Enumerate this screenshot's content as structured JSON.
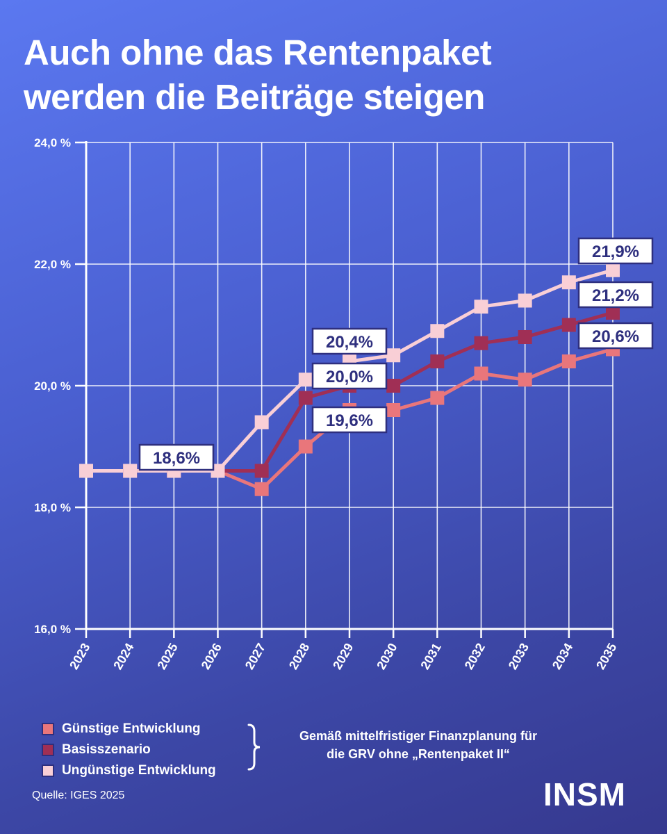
{
  "title": {
    "line1": "Auch ohne das Rentenpaket",
    "line2": "werden die Beiträge steigen"
  },
  "chart_data": {
    "type": "line",
    "title": "Auch ohne das Rentenpaket werden die Beiträge steigen",
    "x": [
      "2023",
      "2024",
      "2025",
      "2026",
      "2027",
      "2028",
      "2029",
      "2030",
      "2031",
      "2032",
      "2033",
      "2034",
      "2035"
    ],
    "ylim": [
      16,
      24
    ],
    "yticks": [
      16,
      18,
      20,
      22,
      24
    ],
    "ytick_labels": [
      "16,0 %",
      "18,0 %",
      "20,0 %",
      "22,0 %",
      "24,0 %"
    ],
    "xlabel": "",
    "ylabel": "",
    "grid": true,
    "series": [
      {
        "name": "Günstige Entwicklung",
        "color": "#e9767b",
        "values": [
          18.6,
          18.6,
          18.6,
          18.6,
          18.3,
          19.0,
          19.6,
          19.6,
          19.8,
          20.2,
          20.1,
          20.4,
          20.6
        ]
      },
      {
        "name": "Basisszenario",
        "color": "#a02f55",
        "values": [
          18.6,
          18.6,
          18.6,
          18.6,
          18.6,
          19.8,
          20.0,
          20.0,
          20.4,
          20.7,
          20.8,
          21.0,
          21.2
        ]
      },
      {
        "name": "Ungünstige Entwicklung",
        "color": "#f9cfd6",
        "values": [
          18.6,
          18.6,
          18.6,
          18.6,
          19.4,
          20.1,
          20.4,
          20.5,
          20.9,
          21.3,
          21.4,
          21.7,
          21.9
        ]
      }
    ],
    "annotations": [
      {
        "text": "18,6%",
        "x": "2025"
      },
      {
        "text": "20,4%",
        "x": "2029"
      },
      {
        "text": "20,0%",
        "x": "2029"
      },
      {
        "text": "19,6%",
        "x": "2029"
      },
      {
        "text": "21,9%",
        "x": "2035"
      },
      {
        "text": "21,2%",
        "x": "2035"
      },
      {
        "text": "20,6%",
        "x": "2035"
      }
    ]
  },
  "legend": {
    "items": [
      {
        "label": "Günstige Entwicklung",
        "color": "#e9767b"
      },
      {
        "label": "Basisszenario",
        "color": "#a02f55"
      },
      {
        "label": "Ungünstige Entwicklung",
        "color": "#f9cfd6"
      }
    ],
    "note_line1": "Gemäß mittelfristiger Finanzplanung für",
    "note_line2": "die GRV ohne „Rentenpaket II“"
  },
  "source": "Quelle:  IGES 2025",
  "brand": "INSM"
}
